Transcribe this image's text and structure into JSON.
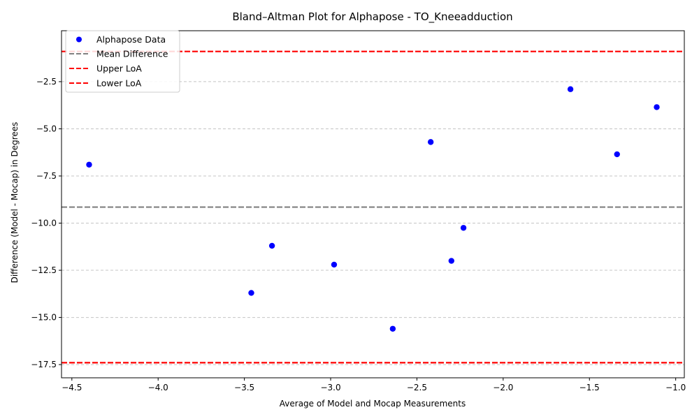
{
  "chart_data": {
    "type": "scatter",
    "title": "Bland–Altman Plot for Alphapose - TO_Kneeadduction",
    "xlabel": "Average of Model and Mocap Measurements",
    "ylabel": "Difference (Model - Mocap) in Degrees",
    "xlim": [
      -4.56,
      -0.95
    ],
    "ylim": [
      -18.2,
      0.2
    ],
    "xticks": [
      -4.5,
      -4.0,
      -3.5,
      -3.0,
      -2.5,
      -2.0,
      -1.5,
      -1.0
    ],
    "xtick_labels": [
      "−4.5",
      "−4.0",
      "−3.5",
      "−3.0",
      "−2.5",
      "−2.0",
      "−1.5",
      "−1.0"
    ],
    "yticks": [
      -17.5,
      -15.0,
      -12.5,
      -10.0,
      -7.5,
      -5.0,
      -2.5
    ],
    "ytick_labels": [
      "−17.5",
      "−15.0",
      "−12.5",
      "−10.0",
      "−7.5",
      "−5.0",
      "−2.5"
    ],
    "grid": "y",
    "legend_position": "top-left",
    "series": [
      {
        "name": "Alphapose Data",
        "color": "#0000ff",
        "points": [
          {
            "x": -4.4,
            "y": -6.9
          },
          {
            "x": -3.46,
            "y": -13.7
          },
          {
            "x": -3.34,
            "y": -11.2
          },
          {
            "x": -2.98,
            "y": -12.2
          },
          {
            "x": -2.64,
            "y": -15.6
          },
          {
            "x": -2.42,
            "y": -5.7
          },
          {
            "x": -2.3,
            "y": -12.0
          },
          {
            "x": -2.23,
            "y": -10.25
          },
          {
            "x": -1.61,
            "y": -2.9
          },
          {
            "x": -1.34,
            "y": -6.35
          },
          {
            "x": -1.11,
            "y": -3.85
          }
        ]
      }
    ],
    "reference_lines": [
      {
        "name": "Mean Difference",
        "y": -9.15,
        "color": "#808080"
      },
      {
        "name": "Upper LoA",
        "y": -0.9,
        "color": "#ff0000"
      },
      {
        "name": "Lower LoA",
        "y": -17.4,
        "color": "#ff0000"
      }
    ]
  }
}
